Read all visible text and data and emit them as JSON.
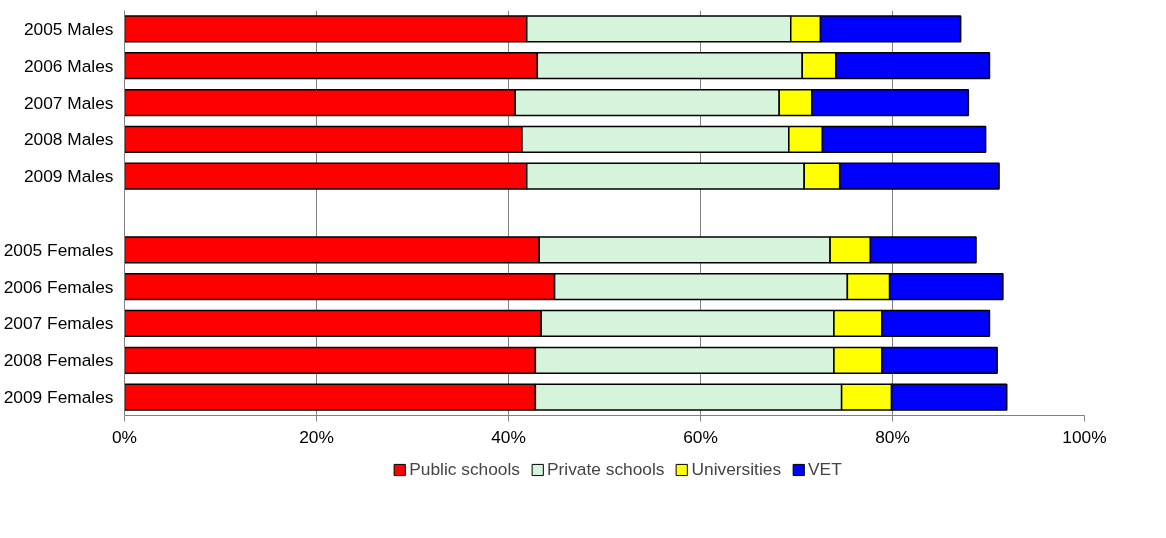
{
  "chart_data": {
    "type": "bar",
    "orientation": "horizontal",
    "stacked": true,
    "categories": [
      "2005 Males",
      "2006 Males",
      "2007 Males",
      "2008 Males",
      "2009 Males",
      null,
      "2005 Females",
      "2006 Females",
      "2007 Females",
      "2008 Females",
      "2009 Females"
    ],
    "series": [
      {
        "name": "Public schools",
        "color": "#ff0000",
        "values": [
          41.9,
          43.0,
          40.7,
          41.4,
          41.9,
          null,
          43.2,
          44.8,
          43.4,
          42.8,
          42.8
        ]
      },
      {
        "name": "Private schools",
        "color": "#d6f3dc",
        "values": [
          27.5,
          27.6,
          27.5,
          27.8,
          28.9,
          null,
          30.3,
          30.5,
          30.5,
          31.1,
          31.9
        ]
      },
      {
        "name": "Universities",
        "color": "#ffff00",
        "values": [
          3.1,
          3.5,
          3.4,
          3.5,
          3.7,
          null,
          4.2,
          4.4,
          5.0,
          5.0,
          5.2
        ]
      },
      {
        "name": "VET",
        "color": "#0000ff",
        "values": [
          14.6,
          16.0,
          16.3,
          17.0,
          16.6,
          null,
          11.0,
          11.8,
          11.2,
          12.0,
          12.0
        ]
      }
    ],
    "xlim": [
      0,
      100
    ],
    "xticks": [
      {
        "value": 0,
        "label": "0%"
      },
      {
        "value": 20,
        "label": "20%"
      },
      {
        "value": 40,
        "label": "40%"
      },
      {
        "value": 60,
        "label": "60%"
      },
      {
        "value": 80,
        "label": "80%"
      },
      {
        "value": 100,
        "label": "100%"
      }
    ],
    "grid": "x",
    "legend": "bottom"
  }
}
